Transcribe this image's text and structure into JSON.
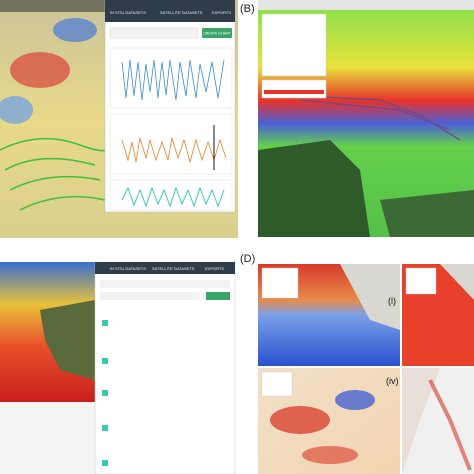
{
  "panel_a": {
    "tabs": [
      "IN SITU DATASETS",
      "SATELLITE DATASETS",
      "EXPORTS"
    ],
    "button": "CREATE CHART"
  },
  "panel_b": {
    "label": "(B)"
  },
  "panel_c": {
    "tabs": [
      "IN SITU DATASETS",
      "SATELLITE DATASETS",
      "EXPORTS"
    ]
  },
  "panel_d": {
    "label": "(D)",
    "sublabels": [
      "(i)",
      "(iv)"
    ]
  }
}
